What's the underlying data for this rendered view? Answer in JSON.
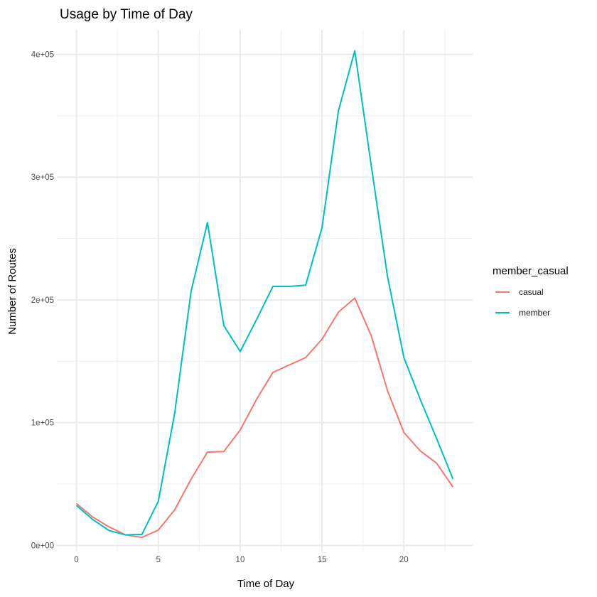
{
  "chart_data": {
    "type": "line",
    "title": "Usage by Time of Day",
    "xlabel": "Time of Day",
    "ylabel": "Number of Routes",
    "x": [
      0,
      1,
      2,
      3,
      4,
      5,
      6,
      7,
      8,
      9,
      10,
      11,
      12,
      13,
      14,
      15,
      16,
      17,
      18,
      19,
      20,
      21,
      22,
      23
    ],
    "xlim": [
      -1.2,
      24.2
    ],
    "ylim": [
      -5000,
      420000
    ],
    "xticks": [
      0,
      5,
      10,
      15,
      20
    ],
    "xtick_labels": [
      "0",
      "5",
      "10",
      "15",
      "20"
    ],
    "yticks": [
      0,
      100000,
      200000,
      300000,
      400000
    ],
    "ytick_labels": [
      "0e+00",
      "1e+05",
      "2e+05",
      "3e+05",
      "4e+05"
    ],
    "grid": true,
    "legend": {
      "title": "member_casual",
      "position": "right"
    },
    "series": [
      {
        "name": "casual",
        "color": "#F8766D",
        "values": [
          34000,
          23000,
          15000,
          8500,
          6500,
          12500,
          29000,
          54000,
          76000,
          76500,
          94000,
          119000,
          141000,
          147000,
          153000,
          168000,
          190000,
          201500,
          171000,
          126000,
          92000,
          77000,
          67000,
          47500
        ]
      },
      {
        "name": "member",
        "color": "#00BFC4",
        "values": [
          32500,
          21000,
          12000,
          8500,
          9000,
          36000,
          108000,
          207000,
          263000,
          179000,
          158000,
          184000,
          211000,
          211000,
          212000,
          259000,
          354000,
          403000,
          310000,
          219000,
          153000,
          119000,
          87000,
          54000
        ]
      }
    ]
  }
}
